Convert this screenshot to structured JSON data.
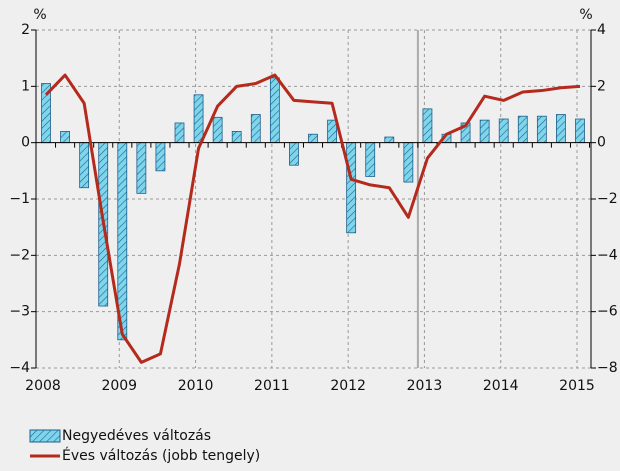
{
  "chart_data": {
    "type": "bar_line",
    "y_unit": "%",
    "y2_unit": "%",
    "categories": [
      "2008",
      null,
      null,
      null,
      "2009",
      null,
      null,
      null,
      "2010",
      null,
      null,
      null,
      "2011",
      null,
      null,
      null,
      "2012",
      null,
      null,
      null,
      "2013",
      null,
      null,
      null,
      "2014",
      null,
      null,
      null,
      "2015"
    ],
    "series": [
      {
        "name": "Negyedéves változás",
        "type": "bar",
        "color": "#7fd6ec",
        "values": [
          1.05,
          0.2,
          -0.8,
          -2.9,
          -3.5,
          -0.9,
          -0.5,
          0.35,
          0.85,
          0.45,
          0.2,
          0.5,
          1.15,
          -0.4,
          0.15,
          0.4,
          -1.6,
          -0.6,
          0.1,
          -0.7,
          0.6,
          0.15,
          0.35,
          0.4,
          0.42,
          0.47,
          0.47,
          0.5,
          0.42
        ]
      },
      {
        "name": "Éves változás (jobb tengely)",
        "type": "line",
        "axis": "y2",
        "color": "#b42a1c",
        "values": [
          1.7,
          2.4,
          1.4,
          -2.8,
          -6.8,
          -7.8,
          -7.5,
          -4.3,
          -0.2,
          1.3,
          2.0,
          2.1,
          2.4,
          1.5,
          1.45,
          1.4,
          -1.3,
          -1.5,
          -1.6,
          -2.65,
          -0.55,
          0.3,
          0.6,
          1.65,
          1.5,
          1.8,
          1.85,
          1.95,
          2.0
        ]
      }
    ],
    "ylim": [
      -4,
      2
    ],
    "yticks": [
      {
        "value": -4,
        "label": "−4"
      },
      {
        "value": -3,
        "label": "−3"
      },
      {
        "value": -2,
        "label": "−2"
      },
      {
        "value": -1,
        "label": "−1"
      },
      0,
      1,
      2
    ],
    "y2lim": [
      -8,
      4
    ],
    "y2ticks": [
      {
        "value": -8,
        "label": "−8"
      },
      {
        "value": -6,
        "label": "−6"
      },
      {
        "value": -4,
        "label": "−4"
      },
      {
        "value": -2,
        "label": "−2"
      },
      0,
      2,
      4
    ],
    "grid": true
  }
}
